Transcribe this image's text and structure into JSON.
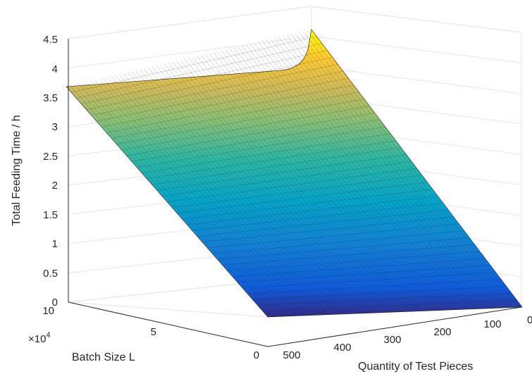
{
  "chart_data": {
    "type": "surface",
    "colormap": "parula",
    "zlabel": "Total Feeding Time / h",
    "ylabel": "Batch Size L",
    "xlabel": "Quantity of Test Pieces",
    "x_ticks": [
      "0",
      "100",
      "200",
      "300",
      "400",
      "500"
    ],
    "y_ticks": [
      "0",
      "5",
      "10"
    ],
    "y_exponent_base": "×10",
    "y_exponent_power": "4",
    "z_ticks": [
      "0",
      "0.5",
      "1",
      "1.5",
      "2",
      "2.5",
      "3",
      "3.5",
      "4",
      "4.5"
    ],
    "xlim": [
      0,
      500
    ],
    "ylim": [
      0,
      100000
    ],
    "zlim": [
      0,
      4.5
    ],
    "grid": true,
    "surface_points": [
      {
        "x": 500,
        "y": 100000,
        "z": 3.6
      },
      {
        "x": 0,
        "y": 100000,
        "z": 3.8
      },
      {
        "x": 0,
        "y": 100,
        "z": 4.6
      },
      {
        "x": 500,
        "y": 0,
        "z": 0.0
      },
      {
        "x": 0,
        "y": 0,
        "z": 0.0
      }
    ]
  }
}
